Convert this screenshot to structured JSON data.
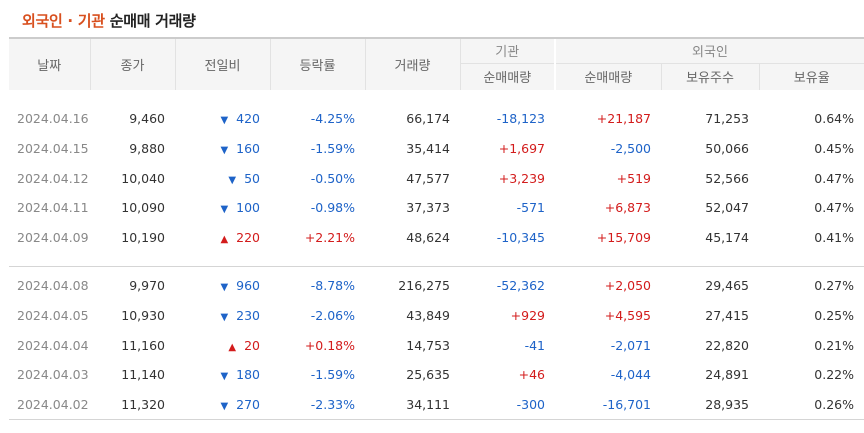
{
  "title": {
    "part1": "외국인 · 기관",
    "part2": "순매매 거래량"
  },
  "headers": {
    "date": "날짜",
    "close": "종가",
    "change": "전일비",
    "rate": "등락률",
    "volume": "거래량",
    "institution": "기관",
    "foreign": "외국인",
    "inst_net": "순매매량",
    "foreign_net": "순매매량",
    "holdings": "보유주수",
    "holding_ratio": "보유율"
  },
  "colors": {
    "up": "#d31c1c",
    "down": "#1e63c8",
    "title_accent": "#d8501f"
  },
  "group1": [
    {
      "date": "2024.04.16",
      "close": "9,460",
      "dir": "down",
      "change": "420",
      "rate": "-4.25%",
      "volume": "66,174",
      "inst": "-18,123",
      "foreign": "+21,187",
      "holdings": "71,253",
      "ratio": "0.64%"
    },
    {
      "date": "2024.04.15",
      "close": "9,880",
      "dir": "down",
      "change": "160",
      "rate": "-1.59%",
      "volume": "35,414",
      "inst": "+1,697",
      "foreign": "-2,500",
      "holdings": "50,066",
      "ratio": "0.45%"
    },
    {
      "date": "2024.04.12",
      "close": "10,040",
      "dir": "down",
      "change": "50",
      "rate": "-0.50%",
      "volume": "47,577",
      "inst": "+3,239",
      "foreign": "+519",
      "holdings": "52,566",
      "ratio": "0.47%"
    },
    {
      "date": "2024.04.11",
      "close": "10,090",
      "dir": "down",
      "change": "100",
      "rate": "-0.98%",
      "volume": "37,373",
      "inst": "-571",
      "foreign": "+6,873",
      "holdings": "52,047",
      "ratio": "0.47%"
    },
    {
      "date": "2024.04.09",
      "close": "10,190",
      "dir": "up",
      "change": "220",
      "rate": "+2.21%",
      "volume": "48,624",
      "inst": "-10,345",
      "foreign": "+15,709",
      "holdings": "45,174",
      "ratio": "0.41%"
    }
  ],
  "group2": [
    {
      "date": "2024.04.08",
      "close": "9,970",
      "dir": "down",
      "change": "960",
      "rate": "-8.78%",
      "volume": "216,275",
      "inst": "-52,362",
      "foreign": "+2,050",
      "holdings": "29,465",
      "ratio": "0.27%"
    },
    {
      "date": "2024.04.05",
      "close": "10,930",
      "dir": "down",
      "change": "230",
      "rate": "-2.06%",
      "volume": "43,849",
      "inst": "+929",
      "foreign": "+4,595",
      "holdings": "27,415",
      "ratio": "0.25%"
    },
    {
      "date": "2024.04.04",
      "close": "11,160",
      "dir": "up",
      "change": "20",
      "rate": "+0.18%",
      "volume": "14,753",
      "inst": "-41",
      "foreign": "-2,071",
      "holdings": "22,820",
      "ratio": "0.21%"
    },
    {
      "date": "2024.04.03",
      "close": "11,140",
      "dir": "down",
      "change": "180",
      "rate": "-1.59%",
      "volume": "25,635",
      "inst": "+46",
      "foreign": "-4,044",
      "holdings": "24,891",
      "ratio": "0.22%"
    },
    {
      "date": "2024.04.02",
      "close": "11,320",
      "dir": "down",
      "change": "270",
      "rate": "-2.33%",
      "volume": "34,111",
      "inst": "-300",
      "foreign": "-16,701",
      "holdings": "28,935",
      "ratio": "0.26%"
    }
  ]
}
